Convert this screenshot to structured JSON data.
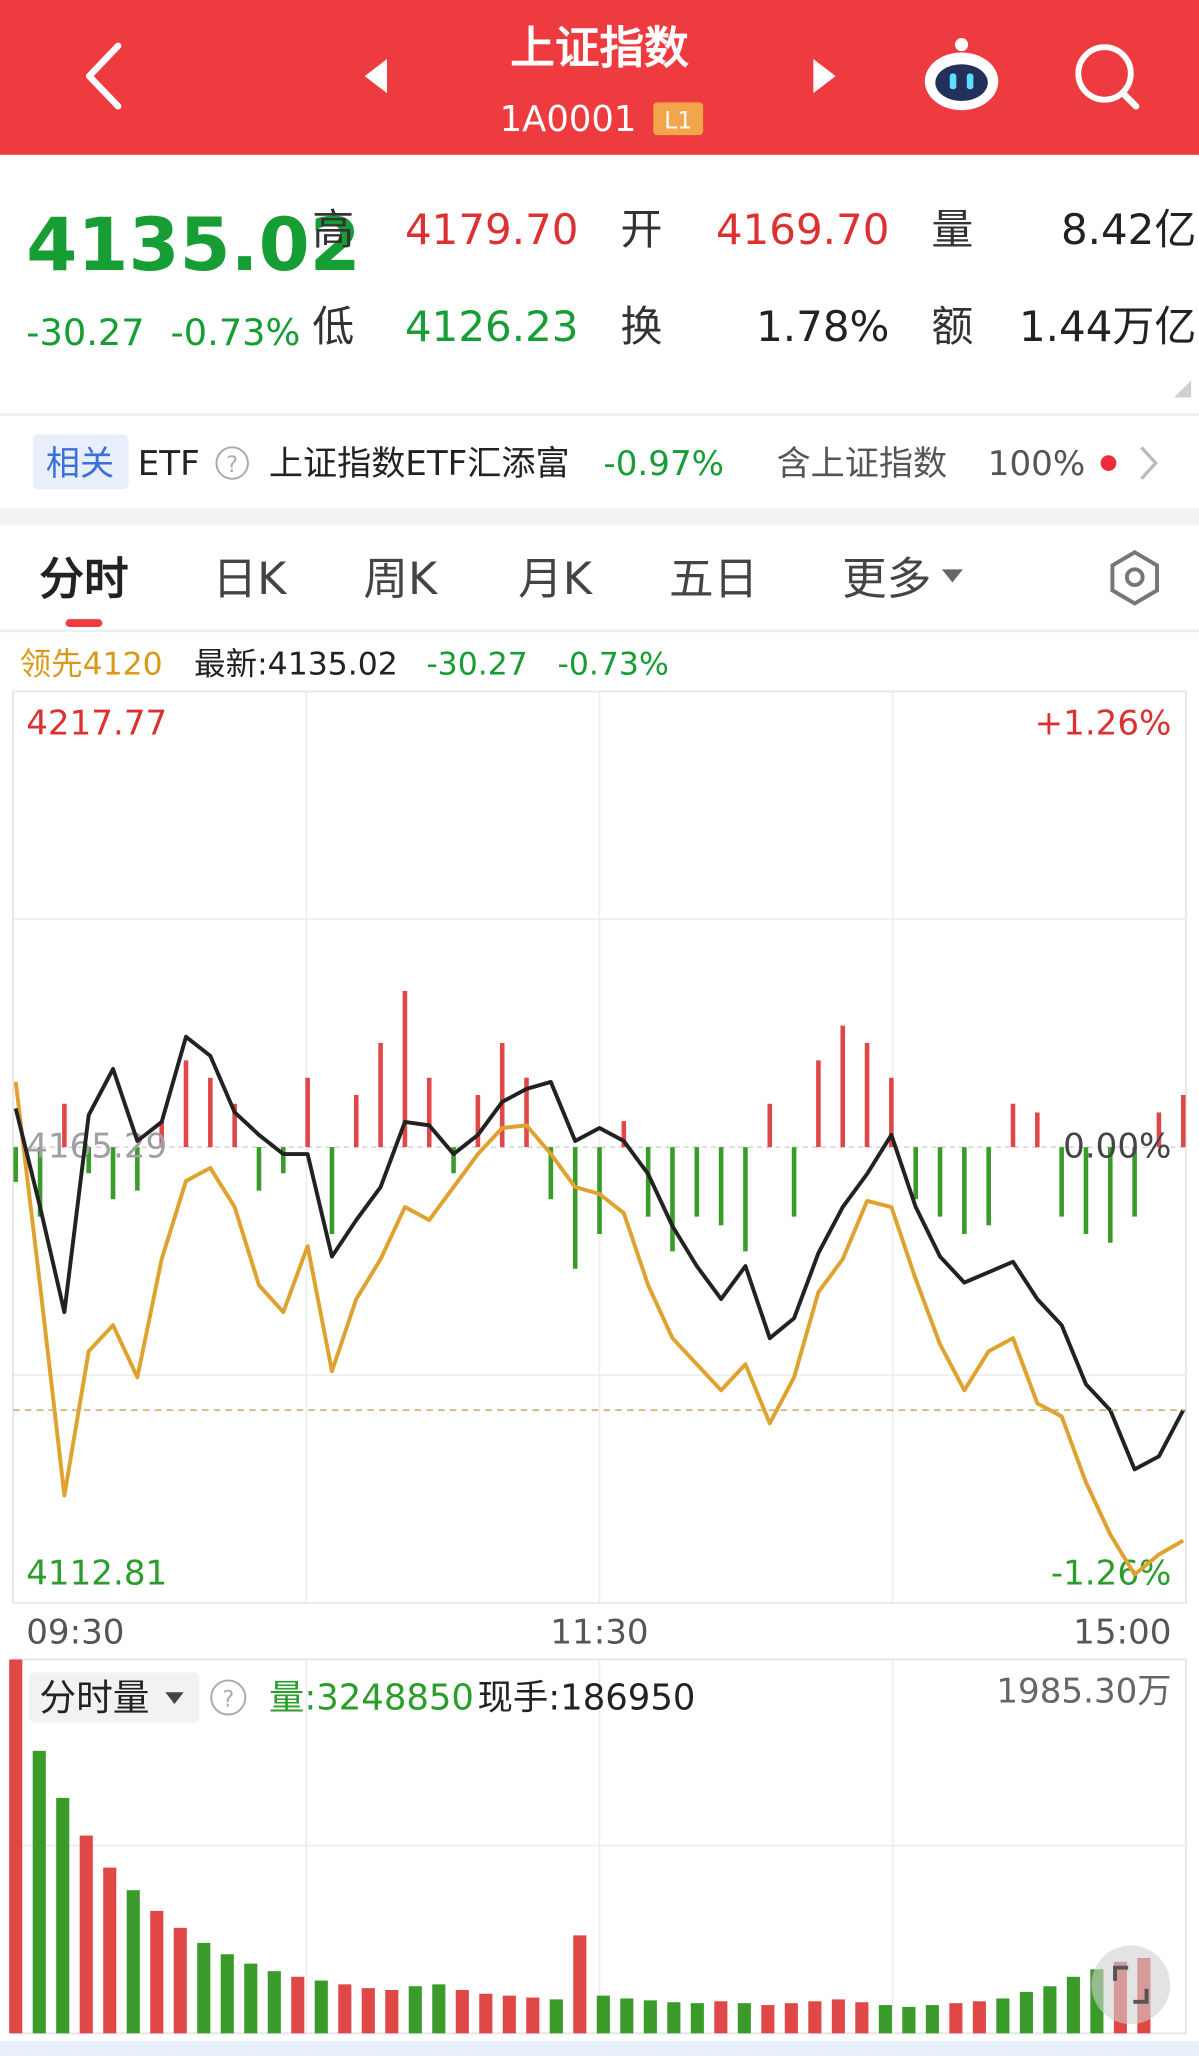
{
  "header": {
    "title": "上证指数",
    "code": "1A0001",
    "level": "L1"
  },
  "quote": {
    "price": "4135.02",
    "change": "-30.27",
    "change_pct": "-0.73%",
    "stats": [
      {
        "label": "高",
        "value": "4179.70"
      },
      {
        "label": "开",
        "value": "4169.70"
      },
      {
        "label": "量",
        "value": "8.42亿"
      },
      {
        "label": "低",
        "value": "4126.23"
      },
      {
        "label": "换",
        "value": "1.78%"
      },
      {
        "label": "额",
        "value": "1.44万亿"
      }
    ]
  },
  "etf": {
    "tag": "相关",
    "kind": "ETF",
    "help": "?",
    "name": "上证指数ETF汇添富",
    "change": "-0.97%",
    "holding": "含上证指数",
    "weight": "100%"
  },
  "tabs": [
    "分时",
    "日K",
    "周K",
    "月K",
    "五日",
    "更多"
  ],
  "info": {
    "lead": "领先4120",
    "latest": "最新:4135.02",
    "change": "-30.27",
    "change_pct": "-0.73%"
  },
  "chart_data": [
    {
      "type": "line",
      "x_labels": [
        "09:30",
        "11:30",
        "15:00"
      ],
      "ylim": [
        4112.81,
        4217.77
      ],
      "yticks": [
        4112.81,
        4165.29,
        4217.77
      ],
      "y2lim": [
        -1.26,
        1.26
      ],
      "y2ticks": [
        {
          "value": -1.26,
          "label": "-1.26%"
        },
        {
          "value": 0,
          "label": "0.00%"
        },
        {
          "value": 1.26,
          "label": "+1.26%"
        }
      ],
      "grid": true,
      "series": [
        {
          "color": "#222222",
          "values": [
            4169.75,
            4158.42,
            4146.3,
            4168.99,
            4174.3,
            4166.0,
            4168.2,
            4178.0,
            4175.8,
            4169.3,
            4166.7,
            4164.5,
            4164.5,
            4152.7,
            4156.9,
            4160.7,
            4168.2,
            4167.8,
            4164.5,
            4166.7,
            4170.5,
            4172.0,
            4172.8,
            4166.0,
            4167.5,
            4166.0,
            4162.2,
            4156.2,
            4151.6,
            4147.8,
            4151.6,
            4143.3,
            4145.6,
            4153.1,
            4158.4,
            4162.2,
            4166.7,
            4158.4,
            4152.7,
            4149.7,
            4150.9,
            4152.1,
            4147.8,
            4144.8,
            4138.0,
            4135.0,
            4128.2,
            4129.7,
            4135.02
          ]
        },
        {
          "color": "#e0a22e",
          "values": [
            4172.8,
            4149.4,
            4125.2,
            4141.8,
            4144.8,
            4138.8,
            4152.4,
            4161.4,
            4162.9,
            4158.4,
            4149.4,
            4146.3,
            4153.9,
            4139.5,
            4147.8,
            4152.4,
            4158.4,
            4156.9,
            4160.7,
            4164.5,
            4167.5,
            4167.8,
            4164.5,
            4160.7,
            4159.9,
            4157.7,
            4149.4,
            4143.3,
            4140.3,
            4137.3,
            4140.3,
            4133.5,
            4138.8,
            4148.6,
            4152.4,
            4159.1,
            4158.4,
            4150.1,
            4142.6,
            4137.3,
            4141.8,
            4143.3,
            4135.8,
            4134.3,
            4126.7,
            4120.7,
            4116.1,
            4118.4,
            4120
          ]
        }
      ],
      "bars": {
        "up_color": "#e04848",
        "down_color": "#3a9a2a",
        "values": [
          -4,
          -8,
          5,
          -3,
          -6,
          -5,
          3,
          10,
          8,
          5,
          -5,
          -3,
          8,
          -10,
          6,
          12,
          18,
          8,
          -3,
          6,
          12,
          8,
          -6,
          -14,
          -10,
          3,
          -8,
          -12,
          -8,
          -9,
          -12,
          5,
          -8,
          10,
          14,
          12,
          8,
          -6,
          -8,
          -10,
          -9,
          5,
          4,
          -8,
          -10,
          -11,
          -8,
          4,
          6
        ]
      }
    },
    {
      "type": "bar",
      "title": "分时量",
      "volume": "量:3248850",
      "last": "现手:186950",
      "ylim": [
        0,
        1985.3
      ],
      "yticks": [
        {
          "value": 1985.3,
          "label": "1985.30万"
        }
      ],
      "up_color": "#e04848",
      "down_color": "#3a9a2a",
      "values": [
        1985,
        1500,
        1250,
        1050,
        880,
        760,
        650,
        560,
        480,
        420,
        370,
        330,
        300,
        280,
        260,
        240,
        230,
        250,
        260,
        230,
        210,
        200,
        190,
        180,
        520,
        200,
        185,
        175,
        165,
        160,
        170,
        160,
        150,
        160,
        170,
        180,
        165,
        150,
        140,
        150,
        160,
        170,
        185,
        220,
        250,
        300,
        340,
        380,
        400
      ]
    }
  ]
}
